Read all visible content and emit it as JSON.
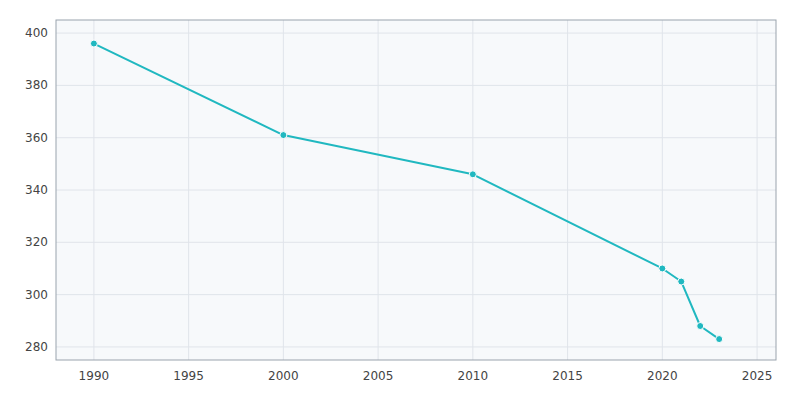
{
  "chart_data": {
    "type": "line",
    "x": [
      1990,
      2000,
      2010,
      2020,
      2021,
      2022,
      2023
    ],
    "values": [
      396,
      361,
      346,
      310,
      305,
      288,
      283
    ],
    "color": "#20b8c0",
    "marker": "circle",
    "xlim": [
      1988,
      2026
    ],
    "ylim": [
      275,
      405
    ],
    "xticks": [
      1990,
      1995,
      2000,
      2005,
      2010,
      2015,
      2020,
      2025
    ],
    "yticks": [
      280,
      300,
      320,
      340,
      360,
      380,
      400
    ],
    "grid": true
  }
}
